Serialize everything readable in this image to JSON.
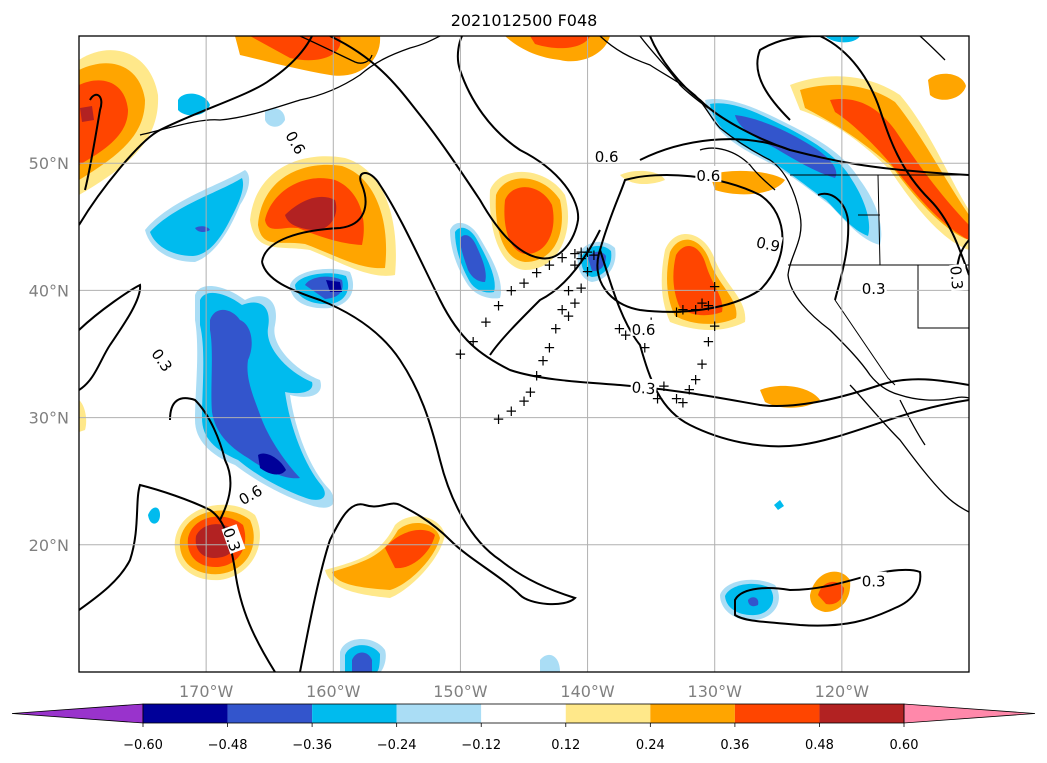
{
  "title": "2021012500 F048",
  "map": {
    "lon_range": [
      -180,
      -110
    ],
    "lat_range": [
      10,
      60
    ],
    "lat_ticks": [
      "20°N",
      "30°N",
      "40°N",
      "50°N"
    ],
    "lon_ticks": [
      "170°W",
      "160°W",
      "150°W",
      "140°W",
      "130°W",
      "120°W"
    ],
    "grid": true
  },
  "contour_labels": [
    "0.6",
    "0.6",
    "0.9",
    "0.3",
    "0.6",
    "0.3",
    "0.6",
    "0.3",
    "0.3",
    "0.3",
    "0.3",
    "0.6"
  ],
  "track_symbol": "+",
  "colorbar": {
    "ticks": [
      "−0.60",
      "−0.48",
      "−0.36",
      "−0.24",
      "−0.12",
      "0.12",
      "0.24",
      "0.36",
      "0.48",
      "0.60"
    ],
    "colors": [
      "#9933cc",
      "#000099",
      "#3355cc",
      "#00bbee",
      "#aaddf5",
      "#ffffff",
      "#ffe88a",
      "#ffa500",
      "#ff4500",
      "#b22222",
      "#ff88aa"
    ],
    "extend": "both"
  }
}
